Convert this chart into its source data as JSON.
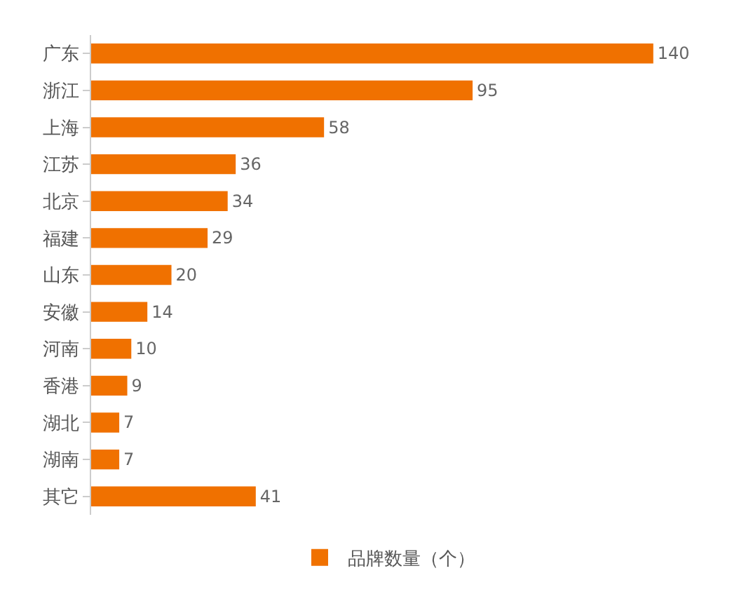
{
  "chart_data": {
    "type": "bar",
    "orientation": "horizontal",
    "categories": [
      "广东",
      "浙江",
      "上海",
      "江苏",
      "北京",
      "福建",
      "山东",
      "安徽",
      "河南",
      "香港",
      "湖北",
      "湖南",
      "其它"
    ],
    "series": [
      {
        "name": "品牌数量（个）",
        "color": "#f07100",
        "values": [
          140,
          95,
          58,
          36,
          34,
          29,
          20,
          14,
          10,
          9,
          7,
          7,
          41
        ]
      }
    ],
    "data_labels": true,
    "legend": "bottom",
    "tick_labels": "y"
  }
}
